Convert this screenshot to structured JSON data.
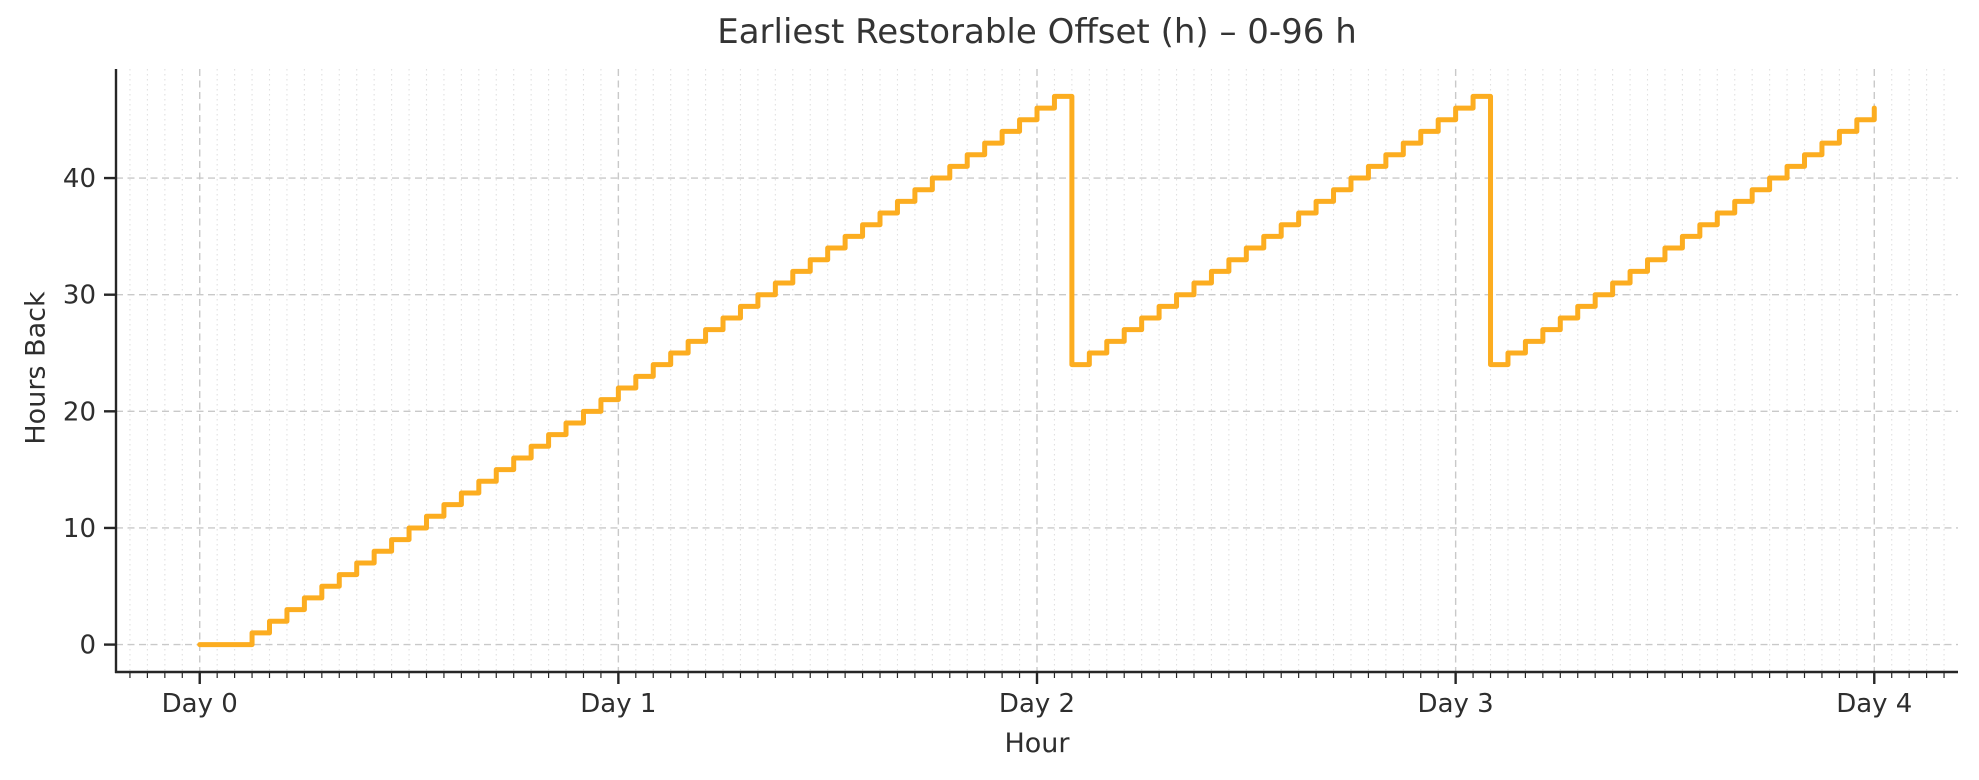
{
  "chart_data": {
    "type": "line",
    "subtype": "step-post",
    "title": "Earliest Restorable Offset (h) – 0-96 h",
    "xlabel": "Hour",
    "ylabel": "Hours Back",
    "x_hours": {
      "from": 0,
      "to": 96,
      "step": 1
    },
    "values": [
      0,
      0,
      0,
      1,
      2,
      3,
      4,
      5,
      6,
      7,
      8,
      9,
      10,
      11,
      12,
      13,
      14,
      15,
      16,
      17,
      18,
      19,
      20,
      21,
      22,
      23,
      24,
      25,
      26,
      27,
      28,
      29,
      30,
      31,
      32,
      33,
      34,
      35,
      36,
      37,
      38,
      39,
      40,
      41,
      42,
      43,
      44,
      45,
      46,
      47,
      24,
      25,
      26,
      27,
      28,
      29,
      30,
      31,
      32,
      33,
      34,
      35,
      36,
      37,
      38,
      39,
      40,
      41,
      42,
      43,
      44,
      45,
      46,
      47,
      24,
      25,
      26,
      27,
      28,
      29,
      30,
      31,
      32,
      33,
      34,
      35,
      36,
      37,
      38,
      39,
      40,
      41,
      42,
      43,
      44,
      45,
      46
    ],
    "x_ticks_major": [
      0,
      24,
      48,
      72,
      96
    ],
    "x_tick_labels": [
      "Day 0",
      "Day 1",
      "Day 2",
      "Day 3",
      "Day 4"
    ],
    "x_minor_tick_step_hours": 1,
    "y_ticks": [
      0,
      10,
      20,
      30,
      40
    ],
    "y_tick_labels": [
      "0",
      "10",
      "20",
      "30",
      "40"
    ],
    "xlim": [
      -4.8,
      100.8
    ],
    "ylim": [
      -2.35,
      49.35
    ],
    "grid": true,
    "legend": "none",
    "line_color": "#FCAD20",
    "line_width": 5,
    "major_grid_color": "#c9c9c9",
    "minor_grid_color": "#e0e0e0",
    "axis_color": "#262626",
    "text_color": "#2e2e2e",
    "background_color": "#ffffff"
  }
}
